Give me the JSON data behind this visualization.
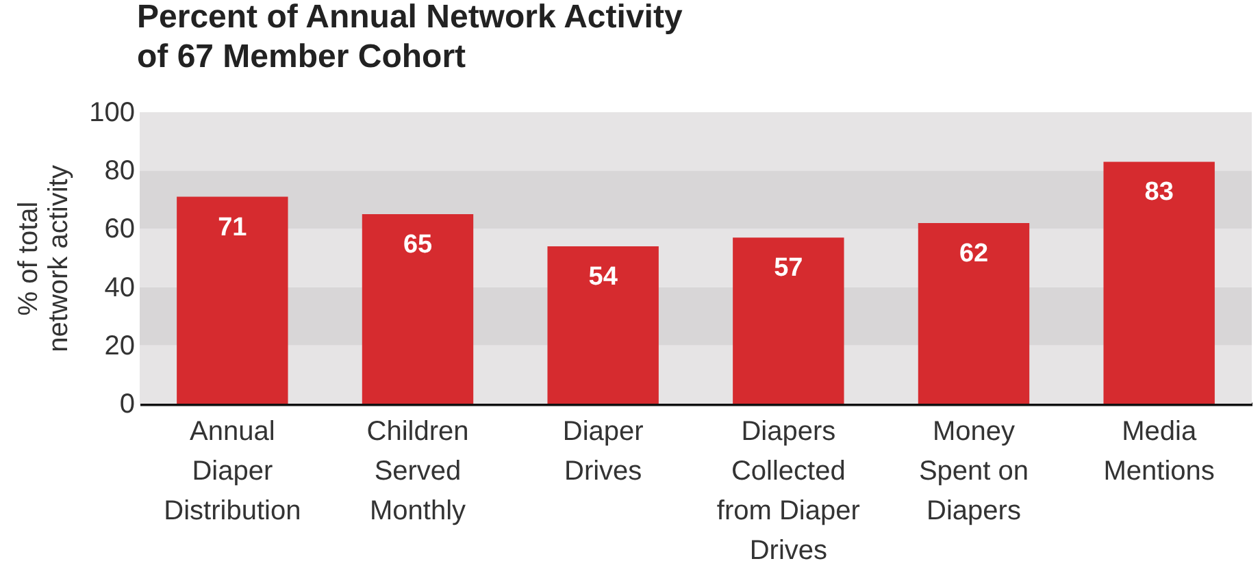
{
  "chart_data": {
    "type": "bar",
    "title": "Percent of Annual Network Activity of 67 Member Cohort",
    "ylabel": "% of total network activity",
    "categories": [
      "Annual Diaper Distribution",
      "Children Served Monthly",
      "Diaper Drives",
      "Diapers Collected from Diaper Drives",
      "Money Spent on Diapers",
      "Media Mentions"
    ],
    "values": [
      71,
      65,
      54,
      57,
      62,
      83
    ],
    "color": "#d62b2f",
    "data_labels": true,
    "ylim": [
      0,
      100
    ],
    "yticks": [
      0,
      20,
      40,
      60,
      80,
      100
    ],
    "grid": false,
    "bands": [
      {
        "axis": "y",
        "from": 0,
        "to": 20,
        "color": "#e6e4e5"
      },
      {
        "axis": "y",
        "from": 20,
        "to": 40,
        "color": "#d8d6d7"
      },
      {
        "axis": "y",
        "from": 40,
        "to": 60,
        "color": "#e6e4e5"
      },
      {
        "axis": "y",
        "from": 60,
        "to": 80,
        "color": "#d8d6d7"
      },
      {
        "axis": "y",
        "from": 80,
        "to": 100,
        "color": "#e6e4e5"
      }
    ]
  }
}
